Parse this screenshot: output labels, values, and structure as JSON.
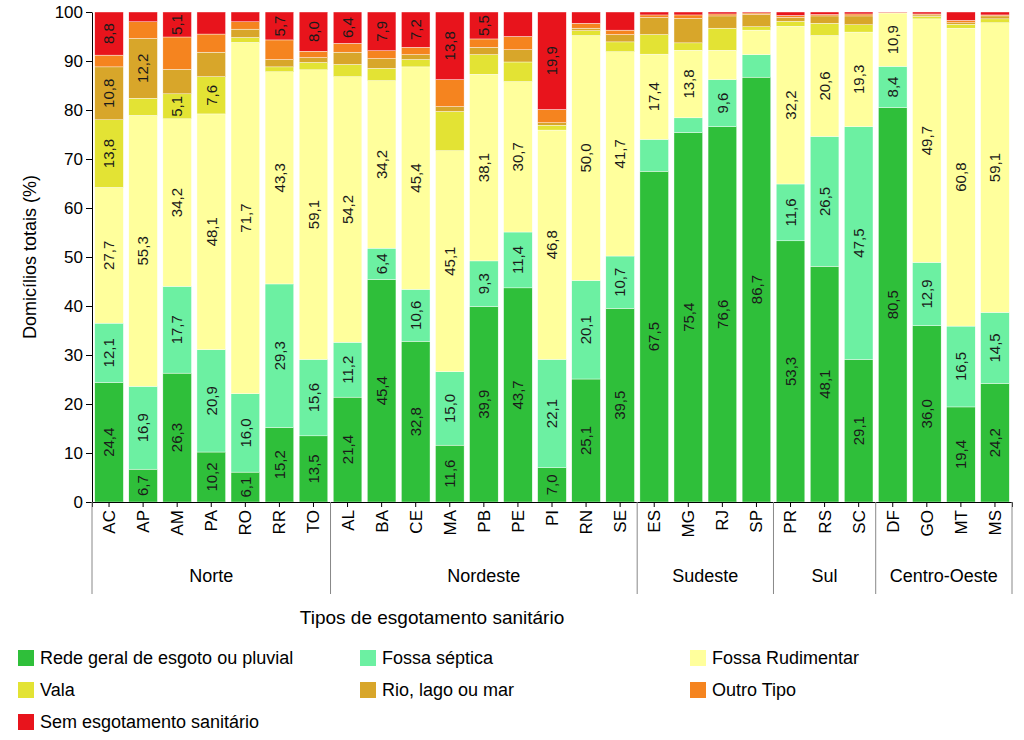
{
  "chart_data": {
    "type": "bar",
    "stacked": true,
    "data_labels": true,
    "grid": false,
    "legend": "bottom",
    "ylabel": "Domicílios totais (%)",
    "xlabel": "Tipos de esgotamento sanitário",
    "categories": [
      "AC",
      "AP",
      "AM",
      "PA",
      "RO",
      "RR",
      "TO",
      "AL",
      "BA",
      "CE",
      "MA",
      "PB",
      "PE",
      "PI",
      "RN",
      "SE",
      "ES",
      "MG",
      "RJ",
      "SP",
      "PR",
      "RS",
      "SC",
      "DF",
      "GO",
      "MT",
      "MS"
    ],
    "groups": [
      {
        "label": "Norte",
        "size": 7
      },
      {
        "label": "Nordeste",
        "size": 9
      },
      {
        "label": "Sudeste",
        "size": 4
      },
      {
        "label": "Sul",
        "size": 3
      },
      {
        "label": "Centro-Oeste",
        "size": 4
      }
    ],
    "ylim": [
      0,
      100
    ],
    "yticks": [
      0,
      10,
      20,
      30,
      40,
      50,
      60,
      70,
      80,
      90,
      100
    ],
    "series": [
      {
        "name": "Rede geral de esgoto ou pluvial",
        "color": "#2fbf3a",
        "values": [
          24.4,
          6.7,
          26.3,
          10.2,
          6.1,
          15.2,
          13.5,
          21.4,
          45.4,
          32.8,
          11.6,
          39.9,
          43.7,
          7.0,
          25.1,
          39.5,
          67.5,
          75.4,
          76.6,
          86.7,
          53.3,
          48.1,
          29.1,
          80.5,
          36.0,
          19.4,
          24.2
        ],
        "value_labels": [
          "24,4",
          "6,7",
          "26,3",
          "10,2",
          "6,1",
          "15,2",
          "13,5",
          "21,4",
          "45,4",
          "32,8",
          "11,6",
          "39,9",
          "43,7",
          "7,0",
          "25,1",
          "39,5",
          "67,5",
          "75,4",
          "76,6",
          "86,7",
          "53,3",
          "48,1",
          "29,1",
          "80,5",
          "36,0",
          "19,4",
          "24,2"
        ]
      },
      {
        "name": "Fossa séptica",
        "color": "#6cf0a2",
        "values": [
          12.1,
          16.9,
          17.7,
          20.9,
          16.0,
          29.3,
          15.6,
          11.2,
          6.4,
          10.6,
          15.0,
          9.3,
          11.4,
          22.1,
          20.1,
          10.7,
          6.5,
          3.0,
          9.6,
          4.6,
          11.6,
          26.5,
          47.5,
          8.4,
          12.9,
          16.5,
          14.5
        ],
        "value_labels": [
          "12,1",
          "16,9",
          "17,7",
          "20,9",
          "16,0",
          "29,3",
          "15,6",
          "11,2",
          "6,4",
          "10,6",
          "15,0",
          "9,3",
          "11,4",
          "22,1",
          "20,1",
          "10,7",
          null,
          null,
          "9,6",
          null,
          "11,6",
          "26,5",
          "47,5",
          "8,4",
          "12,9",
          "16,5",
          "14,5"
        ]
      },
      {
        "name": "Fossa Rudimentar",
        "color": "#ffff9c",
        "values": [
          27.7,
          55.3,
          34.2,
          48.1,
          71.7,
          43.3,
          59.1,
          54.2,
          34.2,
          45.4,
          45.1,
          38.1,
          30.7,
          46.8,
          50.0,
          41.7,
          17.4,
          13.8,
          6.0,
          5.0,
          32.2,
          20.6,
          19.3,
          10.9,
          49.7,
          60.8,
          59.1
        ],
        "value_labels": [
          "27,7",
          "55,3",
          "34,2",
          "48,1",
          "71,7",
          "43,3",
          "59,1",
          "54,2",
          "34,2",
          "45,4",
          "45,1",
          "38,1",
          "30,7",
          "46,8",
          "50,0",
          "41,7",
          "17,4",
          "13,8",
          null,
          null,
          "32,2",
          "20,6",
          "19,3",
          "10,9",
          "49,7",
          "60,8",
          "59,1"
        ]
      },
      {
        "name": "Vala",
        "color": "#e3e334",
        "values": [
          13.8,
          3.5,
          5.1,
          7.6,
          1.0,
          1.0,
          1.5,
          2.5,
          2.5,
          1.5,
          8.0,
          4.0,
          4.0,
          1.0,
          1.0,
          2.0,
          4.0,
          1.5,
          4.5,
          0.7,
          1.0,
          2.5,
          1.5,
          0.1,
          0.5,
          0.8,
          0.8
        ],
        "value_labels": [
          "13,8",
          null,
          "5,1",
          "7,6",
          null,
          null,
          null,
          null,
          null,
          null,
          null,
          null,
          null,
          null,
          null,
          null,
          null,
          null,
          null,
          null,
          null,
          null,
          null,
          null,
          null,
          null,
          null
        ]
      },
      {
        "name": "Rio, lago ou mar",
        "color": "#d8a62a",
        "values": [
          10.8,
          12.2,
          5.0,
          5.0,
          1.7,
          1.5,
          1.0,
          2.5,
          2.0,
          1.0,
          1.0,
          1.5,
          2.5,
          0.5,
          0.5,
          1.5,
          3.5,
          5.0,
          2.5,
          2.5,
          0.8,
          1.5,
          1.8,
          0.0,
          0.3,
          0.3,
          0.6
        ],
        "value_labels": [
          "10,8",
          "12,2",
          null,
          null,
          null,
          null,
          null,
          null,
          null,
          null,
          null,
          null,
          null,
          null,
          null,
          null,
          null,
          null,
          null,
          null,
          null,
          null,
          null,
          null,
          null,
          null,
          null
        ]
      },
      {
        "name": "Outro Tipo",
        "color": "#f5841f",
        "values": [
          2.4,
          3.4,
          6.6,
          3.7,
          1.5,
          4.0,
          1.3,
          1.8,
          1.6,
          1.5,
          5.5,
          1.7,
          2.7,
          2.7,
          1.0,
          0.9,
          0.5,
          0.7,
          0.4,
          0.3,
          0.4,
          0.3,
          0.4,
          0.0,
          0.2,
          0.5,
          0.2
        ],
        "value_labels": [
          null,
          null,
          null,
          null,
          null,
          null,
          null,
          null,
          null,
          null,
          null,
          null,
          null,
          null,
          null,
          null,
          null,
          null,
          null,
          null,
          null,
          null,
          null,
          null,
          null,
          null,
          null
        ]
      },
      {
        "name": "Sem esgotamento sanitário",
        "color": "#e8141c",
        "values": [
          8.8,
          2.0,
          5.1,
          4.5,
          2.0,
          5.7,
          8.0,
          6.4,
          7.9,
          7.2,
          13.8,
          5.5,
          5.0,
          19.9,
          2.3,
          3.7,
          0.6,
          0.6,
          0.4,
          0.2,
          0.7,
          0.5,
          0.4,
          0.1,
          0.4,
          1.7,
          0.6
        ],
        "value_labels": [
          "8,8",
          null,
          "5,1",
          null,
          null,
          "5,7",
          "8,0",
          "6,4",
          "7,9",
          "7,2",
          "13,8",
          "5,5",
          null,
          "19,9",
          null,
          null,
          null,
          null,
          null,
          null,
          null,
          null,
          null,
          null,
          null,
          null,
          null
        ]
      }
    ]
  }
}
